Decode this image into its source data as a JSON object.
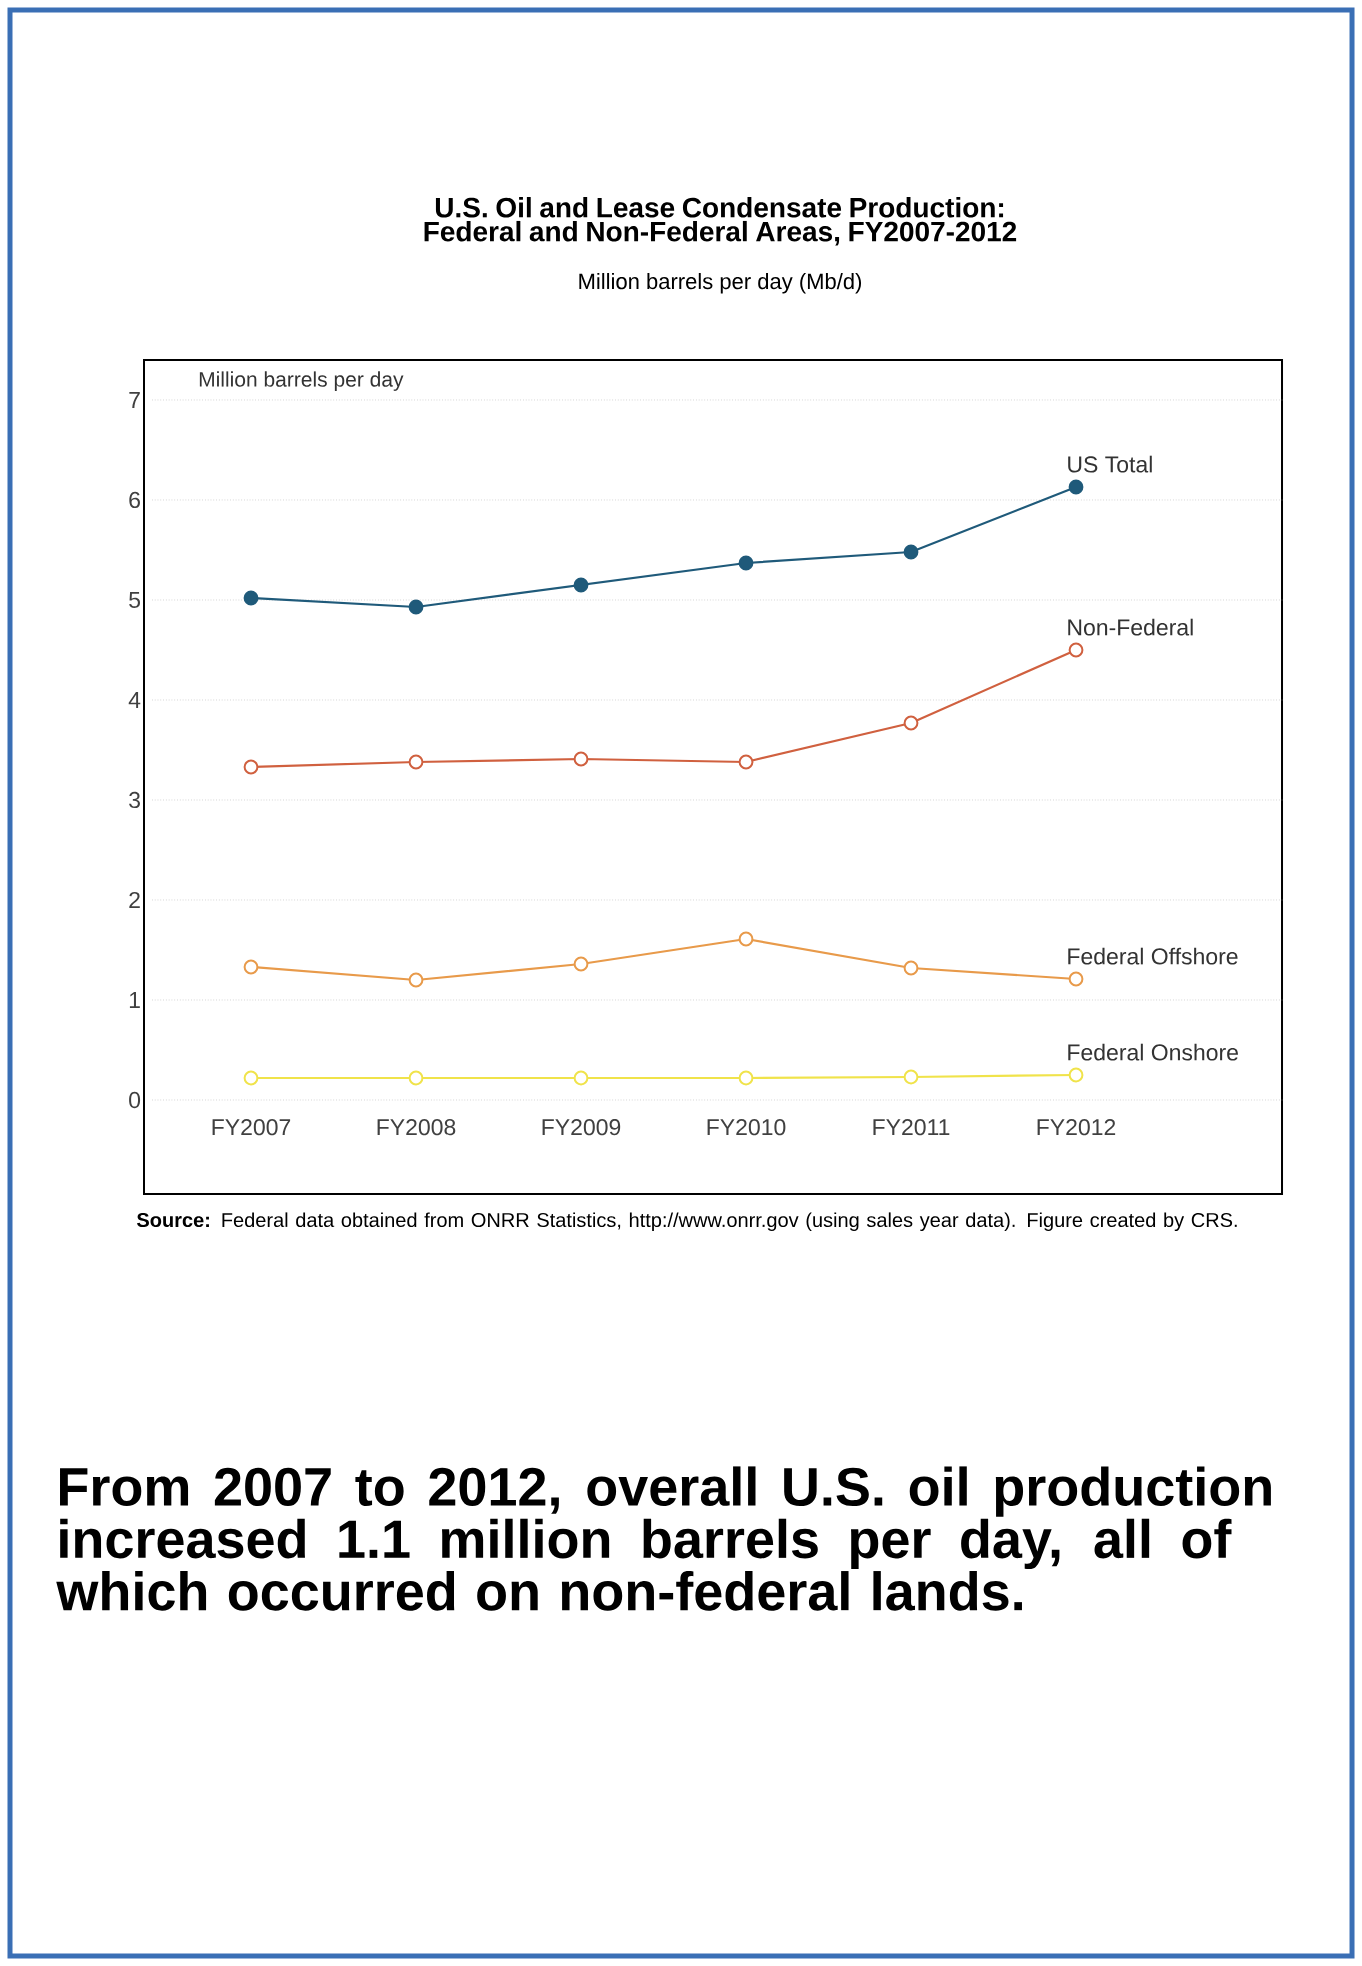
{
  "chart_data": {
    "type": "line",
    "title": "U.S. Oil and Lease Condensate Production: Federal and Non-Federal Areas, FY2007-2012",
    "subtitle": "Million barrels per day (Mb/d)",
    "ylabel": "Million barrels per day",
    "categories": [
      "FY2007",
      "FY2008",
      "FY2009",
      "FY2010",
      "FY2011",
      "FY2012"
    ],
    "series": [
      {
        "name": "US Total",
        "color": "#1f5a7a",
        "values": [
          5.02,
          4.93,
          5.15,
          5.37,
          5.48,
          6.13
        ]
      },
      {
        "name": "Non-Federal",
        "color": "#d0603f",
        "values": [
          3.33,
          3.38,
          3.41,
          3.38,
          3.77,
          4.5
        ]
      },
      {
        "name": "Federal Offshore",
        "color": "#e89a4a",
        "values": [
          1.33,
          1.2,
          1.36,
          1.61,
          1.32,
          1.21
        ]
      },
      {
        "name": "Federal Onshore",
        "color": "#f0e34a",
        "values": [
          0.22,
          0.22,
          0.22,
          0.22,
          0.23,
          0.25
        ]
      }
    ],
    "ylim": [
      0,
      7
    ],
    "yticks": [
      0,
      1,
      2,
      3,
      4,
      5,
      6,
      7
    ],
    "grid": "y",
    "marker": "circle",
    "line_style": "solid",
    "annotations": [
      "**Source:** Federal data obtained from ONRR Statistics, http://www.onrr.gov (using sales year data). Figure created by CRS.",
      "From 2007 to 2012, overall U.S. oil production increased 1.1 million barrels per day, all of which occurred on non-federal lands."
    ]
  }
}
